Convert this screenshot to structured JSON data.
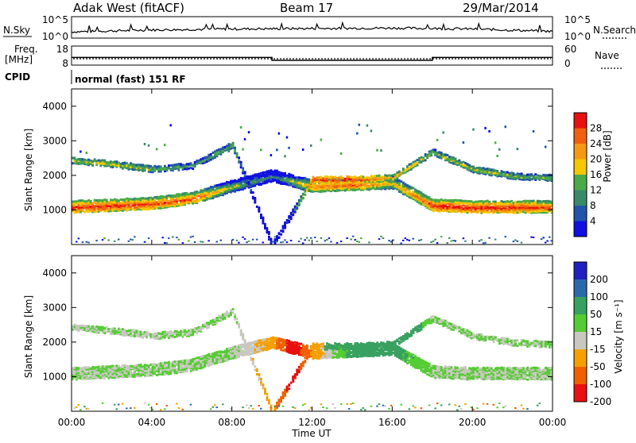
{
  "header": {
    "title": "Adak West (fitACF)",
    "beam": "Beam 17",
    "date": "29/Mar/2014"
  },
  "sky_panel": {
    "left_label": "N.Sky",
    "right_label": "N.Search",
    "left_ticks": [
      "10^5",
      "10^0"
    ],
    "right_ticks": [
      "10^5",
      "10^0"
    ]
  },
  "freq_panel": {
    "left_label_1": "Freq.",
    "left_label_2": "[MHz]",
    "right_label": "Nave",
    "left_ticks": [
      "18",
      "8"
    ],
    "right_ticks": [
      "60",
      "0"
    ]
  },
  "cpid": {
    "label": "CPID",
    "text": "normal (fast) 151 RF"
  },
  "power_panel": {
    "ylabel": "Slant Range [km]",
    "yticks": [
      "1000",
      "2000",
      "3000",
      "4000"
    ],
    "colorbar_label": "Power [dB]",
    "colorbar_ticks": [
      "4",
      "8",
      "12",
      "16",
      "20",
      "24",
      "28"
    ],
    "colors": [
      "#1010e0",
      "#2255aa",
      "#3a8a6a",
      "#4aaa4a",
      "#f5c800",
      "#f59a10",
      "#f06010",
      "#e81010"
    ]
  },
  "velocity_panel": {
    "ylabel": "Slant Range [km]",
    "yticks": [
      "1000",
      "2000",
      "3000",
      "4000"
    ],
    "colorbar_label": "Velocity [m s⁻¹]",
    "colorbar_ticks": [
      "200",
      "100",
      "50",
      "15",
      "-15",
      "-50",
      "-100",
      "-200"
    ],
    "colors": [
      "#2020c0",
      "#2a6aaa",
      "#38a060",
      "#55cc33",
      "#c8c8c0",
      "#f5a000",
      "#f06000",
      "#e81010"
    ]
  },
  "xaxis": {
    "label": "Time UT",
    "ticks": [
      "00:00",
      "04:00",
      "08:00",
      "12:00",
      "16:00",
      "20:00",
      "00:00"
    ]
  },
  "chart_data": [
    {
      "type": "line",
      "title": "N.Sky / N.Search",
      "x": [
        "00:00",
        "04:00",
        "08:00",
        "12:00",
        "16:00",
        "20:00",
        "00:00"
      ],
      "series": [
        {
          "name": "N.Sky",
          "values": [
            0.4,
            0.8,
            1.0,
            1.1,
            1.2,
            1.0,
            0.5
          ]
        }
      ],
      "ylim_label": [
        "10^0",
        "10^5"
      ]
    },
    {
      "type": "line",
      "title": "Freq. [MHz] / Nave",
      "x_hours": [
        0,
        10,
        10,
        18,
        18,
        24
      ],
      "series": [
        {
          "name": "Freq. [MHz]",
          "values": [
            12,
            12,
            10.5,
            10.5,
            12,
            12
          ]
        },
        {
          "name": "Nave",
          "values": [
            15,
            15,
            15,
            15,
            15,
            15
          ]
        }
      ],
      "ylim": [
        8,
        18
      ]
    },
    {
      "type": "heatmap",
      "title": "Power [dB]",
      "x_hours": [
        0,
        2,
        4,
        6,
        8,
        10,
        12,
        14,
        16,
        18,
        20,
        22,
        24
      ],
      "ylabel": "Slant Range [km]",
      "ylim": [
        0,
        4500
      ],
      "band_low_km": [
        1100,
        1150,
        1200,
        1350,
        1700,
        2000,
        1700,
        1750,
        1800,
        1150,
        1100,
        1100,
        1100
      ],
      "band_low_db": [
        28,
        28,
        27,
        26,
        18,
        12,
        24,
        26,
        20,
        28,
        28,
        28,
        26
      ],
      "band_high_km": [
        2450,
        2350,
        2200,
        2300,
        2900,
        0,
        1900,
        1900,
        1950,
        2700,
        2200,
        2000,
        1950
      ],
      "band_high_db": [
        20,
        20,
        18,
        16,
        18,
        0,
        28,
        28,
        22,
        18,
        20,
        18,
        18
      ],
      "clim": [
        4,
        28
      ]
    },
    {
      "type": "heatmap",
      "title": "Velocity [m s⁻¹]",
      "x_hours": [
        0,
        2,
        4,
        6,
        8,
        10,
        11,
        12,
        14,
        16,
        18,
        20,
        22,
        24
      ],
      "ylabel": "Slant Range [km]",
      "ylim": [
        0,
        4500
      ],
      "velocity_ms": [
        0,
        0,
        0,
        0,
        0,
        -50,
        -200,
        -60,
        50,
        50,
        0,
        0,
        0,
        0
      ],
      "clim": [
        -200,
        200
      ]
    }
  ]
}
